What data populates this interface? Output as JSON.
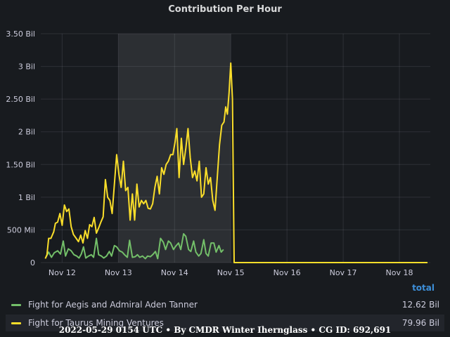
{
  "panel": {
    "title": "Contribution Per Hour",
    "legend_header": "total",
    "legend": [
      {
        "name": "Fight for Aegis and Admiral Aden Tanner",
        "total": "12.62 Bil",
        "color": "#73bf69"
      },
      {
        "name": "Fight for Taurus Mining Ventures",
        "total": "79.96 Bil",
        "color": "#fade2a"
      }
    ],
    "footer": "2022-05-29 0154 UTC • By CMDR Winter Ihernglass • CG ID: 692,691"
  },
  "chart_data": {
    "type": "line",
    "title": "Contribution Per Hour",
    "xlabel": "",
    "ylabel": "",
    "x_unit": "days since Nov 11 00:00",
    "xlim": [
      0.62,
      7.55
    ],
    "ylim": [
      0,
      3500000000
    ],
    "x_ticks": [
      {
        "x": 1,
        "label": "Nov 12"
      },
      {
        "x": 2,
        "label": "Nov 13"
      },
      {
        "x": 3,
        "label": "Nov 14"
      },
      {
        "x": 4,
        "label": "Nov 15"
      },
      {
        "x": 5,
        "label": "Nov 16"
      },
      {
        "x": 6,
        "label": "Nov 17"
      },
      {
        "x": 7,
        "label": "Nov 18"
      }
    ],
    "y_ticks": [
      {
        "y": 0,
        "label": "0"
      },
      {
        "y": 500000000,
        "label": "500 Mil"
      },
      {
        "y": 1000000000,
        "label": "1 Bil"
      },
      {
        "y": 1500000000,
        "label": "1.50 Bil"
      },
      {
        "y": 2000000000,
        "label": "2 Bil"
      },
      {
        "y": 2500000000,
        "label": "2.50 Bil"
      },
      {
        "y": 3000000000,
        "label": "3 Bil"
      },
      {
        "y": 3500000000,
        "label": "3.50 Bil"
      }
    ],
    "highlight_region": [
      2,
      4
    ],
    "grid": true,
    "legend_position": "bottom",
    "series": [
      {
        "name": "Fight for Aegis and Admiral Aden Tanner",
        "color": "#73bf69",
        "points": [
          [
            0.71,
            0.08
          ],
          [
            0.76,
            0.16
          ],
          [
            0.81,
            0.08
          ],
          [
            0.86,
            0.15
          ],
          [
            0.92,
            0.18
          ],
          [
            0.97,
            0.13
          ],
          [
            1.02,
            0.33
          ],
          [
            1.06,
            0.1
          ],
          [
            1.11,
            0.21
          ],
          [
            1.16,
            0.18
          ],
          [
            1.21,
            0.12
          ],
          [
            1.26,
            0.1
          ],
          [
            1.3,
            0.07
          ],
          [
            1.34,
            0.13
          ],
          [
            1.38,
            0.24
          ],
          [
            1.42,
            0.07
          ],
          [
            1.47,
            0.1
          ],
          [
            1.52,
            0.12
          ],
          [
            1.56,
            0.08
          ],
          [
            1.61,
            0.37
          ],
          [
            1.65,
            0.12
          ],
          [
            1.7,
            0.1
          ],
          [
            1.74,
            0.07
          ],
          [
            1.79,
            0.1
          ],
          [
            1.84,
            0.17
          ],
          [
            1.88,
            0.1
          ],
          [
            1.93,
            0.26
          ],
          [
            1.97,
            0.24
          ],
          [
            2.02,
            0.18
          ],
          [
            2.07,
            0.16
          ],
          [
            2.11,
            0.12
          ],
          [
            2.16,
            0.08
          ],
          [
            2.2,
            0.34
          ],
          [
            2.25,
            0.08
          ],
          [
            2.3,
            0.09
          ],
          [
            2.34,
            0.12
          ],
          [
            2.38,
            0.08
          ],
          [
            2.43,
            0.1
          ],
          [
            2.48,
            0.06
          ],
          [
            2.52,
            0.1
          ],
          [
            2.57,
            0.09
          ],
          [
            2.61,
            0.12
          ],
          [
            2.66,
            0.17
          ],
          [
            2.7,
            0.06
          ],
          [
            2.75,
            0.37
          ],
          [
            2.8,
            0.31
          ],
          [
            2.84,
            0.2
          ],
          [
            2.89,
            0.33
          ],
          [
            2.93,
            0.3
          ],
          [
            2.98,
            0.2
          ],
          [
            3.02,
            0.25
          ],
          [
            3.07,
            0.3
          ],
          [
            3.11,
            0.2
          ],
          [
            3.16,
            0.44
          ],
          [
            3.2,
            0.4
          ],
          [
            3.25,
            0.2
          ],
          [
            3.29,
            0.17
          ],
          [
            3.34,
            0.33
          ],
          [
            3.38,
            0.16
          ],
          [
            3.43,
            0.1
          ],
          [
            3.47,
            0.14
          ],
          [
            3.52,
            0.35
          ],
          [
            3.56,
            0.14
          ],
          [
            3.6,
            0.1
          ],
          [
            3.65,
            0.3
          ],
          [
            3.7,
            0.3
          ],
          [
            3.74,
            0.16
          ],
          [
            3.79,
            0.26
          ],
          [
            3.83,
            0.16
          ],
          [
            3.87,
            0.2
          ]
        ]
      },
      {
        "name": "Fight for Taurus Mining Ventures",
        "color": "#fade2a",
        "points": [
          [
            0.7,
            0.06
          ],
          [
            0.73,
            0.12
          ],
          [
            0.76,
            0.37
          ],
          [
            0.8,
            0.37
          ],
          [
            0.85,
            0.47
          ],
          [
            0.88,
            0.6
          ],
          [
            0.92,
            0.62
          ],
          [
            0.96,
            0.75
          ],
          [
            1.0,
            0.57
          ],
          [
            1.04,
            0.88
          ],
          [
            1.08,
            0.78
          ],
          [
            1.12,
            0.82
          ],
          [
            1.16,
            0.55
          ],
          [
            1.2,
            0.43
          ],
          [
            1.25,
            0.37
          ],
          [
            1.29,
            0.32
          ],
          [
            1.33,
            0.42
          ],
          [
            1.37,
            0.3
          ],
          [
            1.41,
            0.49
          ],
          [
            1.45,
            0.37
          ],
          [
            1.49,
            0.58
          ],
          [
            1.53,
            0.55
          ],
          [
            1.57,
            0.69
          ],
          [
            1.61,
            0.45
          ],
          [
            1.65,
            0.53
          ],
          [
            1.69,
            0.62
          ],
          [
            1.73,
            0.7
          ],
          [
            1.77,
            1.27
          ],
          [
            1.81,
            1.0
          ],
          [
            1.85,
            0.95
          ],
          [
            1.89,
            0.75
          ],
          [
            1.93,
            1.2
          ],
          [
            1.97,
            1.65
          ],
          [
            2.01,
            1.35
          ],
          [
            2.05,
            1.15
          ],
          [
            2.09,
            1.55
          ],
          [
            2.13,
            1.1
          ],
          [
            2.17,
            1.15
          ],
          [
            2.21,
            0.65
          ],
          [
            2.25,
            1.05
          ],
          [
            2.29,
            0.65
          ],
          [
            2.33,
            1.2
          ],
          [
            2.37,
            0.85
          ],
          [
            2.41,
            0.95
          ],
          [
            2.45,
            0.9
          ],
          [
            2.49,
            0.95
          ],
          [
            2.53,
            0.83
          ],
          [
            2.57,
            0.82
          ],
          [
            2.61,
            0.9
          ],
          [
            2.65,
            1.15
          ],
          [
            2.69,
            1.32
          ],
          [
            2.73,
            1.05
          ],
          [
            2.77,
            1.45
          ],
          [
            2.81,
            1.35
          ],
          [
            2.85,
            1.5
          ],
          [
            2.89,
            1.55
          ],
          [
            2.93,
            1.65
          ],
          [
            2.97,
            1.65
          ],
          [
            3.01,
            1.85
          ],
          [
            3.04,
            2.05
          ],
          [
            3.08,
            1.3
          ],
          [
            3.12,
            1.9
          ],
          [
            3.16,
            1.5
          ],
          [
            3.2,
            1.75
          ],
          [
            3.24,
            2.05
          ],
          [
            3.28,
            1.6
          ],
          [
            3.32,
            1.3
          ],
          [
            3.36,
            1.4
          ],
          [
            3.4,
            1.25
          ],
          [
            3.44,
            1.55
          ],
          [
            3.48,
            1.0
          ],
          [
            3.52,
            1.05
          ],
          [
            3.56,
            1.45
          ],
          [
            3.6,
            1.2
          ],
          [
            3.64,
            1.3
          ],
          [
            3.68,
            0.95
          ],
          [
            3.72,
            0.8
          ],
          [
            3.76,
            1.3
          ],
          [
            3.8,
            1.8
          ],
          [
            3.84,
            2.1
          ],
          [
            3.88,
            2.15
          ],
          [
            3.91,
            2.38
          ],
          [
            3.94,
            2.27
          ],
          [
            3.97,
            2.6
          ],
          [
            4.0,
            3.05
          ],
          [
            4.03,
            2.5
          ],
          [
            4.06,
            0.0
          ],
          [
            7.5,
            0.0
          ]
        ],
        "y_scale_note": "points y values in billions"
      }
    ]
  }
}
